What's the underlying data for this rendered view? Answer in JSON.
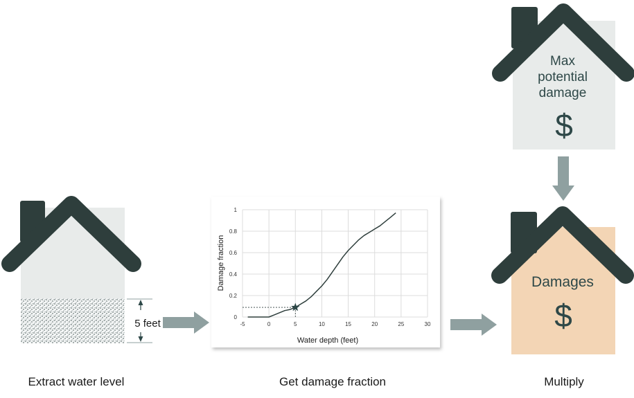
{
  "steps": [
    {
      "caption": "Extract water level"
    },
    {
      "caption": "Get damage fraction"
    },
    {
      "caption": "Multiply"
    }
  ],
  "depth_label": "5 feet",
  "max_house": {
    "line1": "Max",
    "line2": "potential",
    "line3": "damage",
    "symbol": "$"
  },
  "damage_house": {
    "label": "Damages",
    "symbol": "$"
  },
  "chart_data": {
    "type": "line",
    "xlabel": "Water depth (feet)",
    "ylabel": "Damage fraction",
    "xlim": [
      -5,
      30
    ],
    "ylim": [
      0,
      1
    ],
    "xticks": [
      -5,
      0,
      5,
      10,
      15,
      20,
      25,
      30
    ],
    "yticks": [
      0,
      0.2,
      0.4,
      0.6,
      0.8,
      1
    ],
    "grid": true,
    "series": [
      {
        "x": [
          -4,
          -3,
          -2,
          -1,
          0,
          1,
          2,
          3,
          4,
          5,
          6,
          7,
          8,
          9,
          10,
          11,
          12,
          13,
          14,
          15,
          16,
          17,
          18,
          19,
          20,
          21,
          22,
          23,
          24
        ],
        "values": [
          0,
          0,
          0,
          0,
          0,
          0.02,
          0.04,
          0.06,
          0.07,
          0.09,
          0.12,
          0.15,
          0.19,
          0.24,
          0.29,
          0.35,
          0.42,
          0.49,
          0.56,
          0.62,
          0.67,
          0.72,
          0.76,
          0.79,
          0.82,
          0.85,
          0.89,
          0.93,
          0.97
        ]
      }
    ],
    "marker": {
      "x": 5,
      "y": 0.09
    }
  },
  "colors": {
    "roof": "#2e3e3c",
    "wall": "#e8ebea",
    "damage_wall": "#f3d5b5",
    "arrow": "#8fa0a0",
    "text_dark": "#2e4848"
  }
}
